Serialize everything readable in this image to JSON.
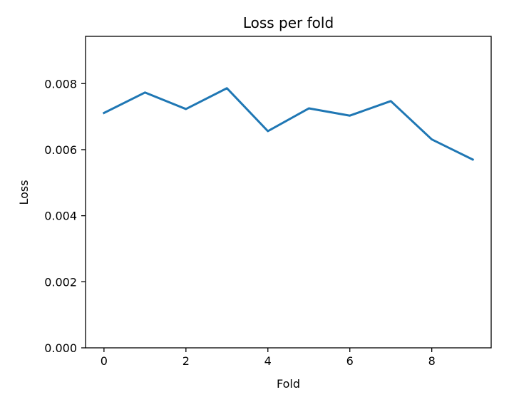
{
  "chart_data": {
    "type": "line",
    "title": "Loss per fold",
    "xlabel": "Fold",
    "ylabel": "Loss",
    "x": [
      0,
      1,
      2,
      3,
      4,
      5,
      6,
      7,
      8,
      9
    ],
    "series": [
      {
        "values": [
          0.00711,
          0.00773,
          0.00723,
          0.00786,
          0.00656,
          0.00725,
          0.00703,
          0.00747,
          0.00631,
          0.0057
        ],
        "color": "#1f77b4"
      }
    ],
    "xlim": [
      -0.45,
      9.45
    ],
    "ylim": [
      0,
      0.00943
    ],
    "x_ticks": [
      0,
      2,
      4,
      6,
      8
    ],
    "x_tick_labels": [
      "0",
      "2",
      "4",
      "6",
      "8"
    ],
    "y_ticks": [
      0,
      0.002,
      0.004,
      0.006,
      0.008
    ],
    "y_tick_labels": [
      "0.000",
      "0.002",
      "0.004",
      "0.006",
      "0.008"
    ],
    "grid": false,
    "legend": false
  }
}
